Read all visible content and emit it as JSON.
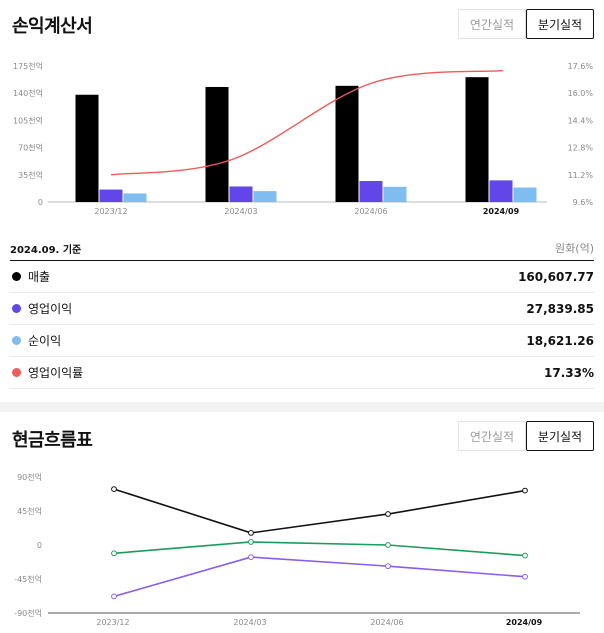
{
  "income": {
    "title": "손익계산서",
    "buttons": {
      "annual": "연간실적",
      "quarterly": "분기실적"
    },
    "basis": "2024.09. 기준",
    "unit": "원화(억)",
    "rows": [
      {
        "label": "매출",
        "value": "160,607.77",
        "color": "#000000"
      },
      {
        "label": "영업이익",
        "value": "27,839.85",
        "color": "#6246ea"
      },
      {
        "label": "순이익",
        "value": "18,621.26",
        "color": "#7fbcf0"
      },
      {
        "label": "영업이익률",
        "value": "17.33%",
        "color": "#f05a5a"
      }
    ]
  },
  "cashflow": {
    "title": "현금흐름표",
    "buttons": {
      "annual": "연간실적",
      "quarterly": "분기실적"
    }
  },
  "chart_data": [
    {
      "type": "bar",
      "categories": [
        "2023/12",
        "2024/03",
        "2024/06",
        "2024/09"
      ],
      "highlight_category": "2024/09",
      "y_left": {
        "ticks": [
          "0",
          "35천억",
          "70천억",
          "105천억",
          "140천억",
          "175천억"
        ],
        "range": [
          0,
          175000
        ]
      },
      "y_right": {
        "ticks": [
          "9.6%",
          "11.2%",
          "12.8%",
          "14.4%",
          "16.0%",
          "17.6%"
        ],
        "range": [
          9.6,
          17.6
        ]
      },
      "series": [
        {
          "name": "매출",
          "color": "#000000",
          "values": [
            138000,
            148000,
            149500,
            160607.77
          ],
          "axis": "left",
          "kind": "bar"
        },
        {
          "name": "영업이익",
          "color": "#6246ea",
          "values": [
            16000,
            20000,
            27000,
            27839.85
          ],
          "axis": "left",
          "kind": "bar"
        },
        {
          "name": "순이익",
          "color": "#7fbcf0",
          "values": [
            11000,
            14000,
            19500,
            18621.26
          ],
          "axis": "left",
          "kind": "bar"
        },
        {
          "name": "영업이익률",
          "color": "#f05a5a",
          "values": [
            11.2,
            12.1,
            16.6,
            17.33
          ],
          "axis": "right",
          "kind": "line"
        }
      ]
    },
    {
      "type": "line",
      "categories": [
        "2023/12",
        "2024/03",
        "2024/06",
        "2024/09"
      ],
      "highlight_category": "2024/09",
      "y": {
        "ticks": [
          "90천억",
          "45천억",
          "0",
          "-45천억",
          "-90천억"
        ],
        "range": [
          -90000,
          90000
        ]
      },
      "series": [
        {
          "color": "#111111",
          "values": [
            74000,
            16000,
            41000,
            72000
          ]
        },
        {
          "color": "#1a9c5a",
          "values": [
            -11000,
            4000,
            0,
            -14000
          ]
        },
        {
          "color": "#8a5cf0",
          "values": [
            -68000,
            -16000,
            -28000,
            -42000
          ]
        }
      ]
    }
  ]
}
